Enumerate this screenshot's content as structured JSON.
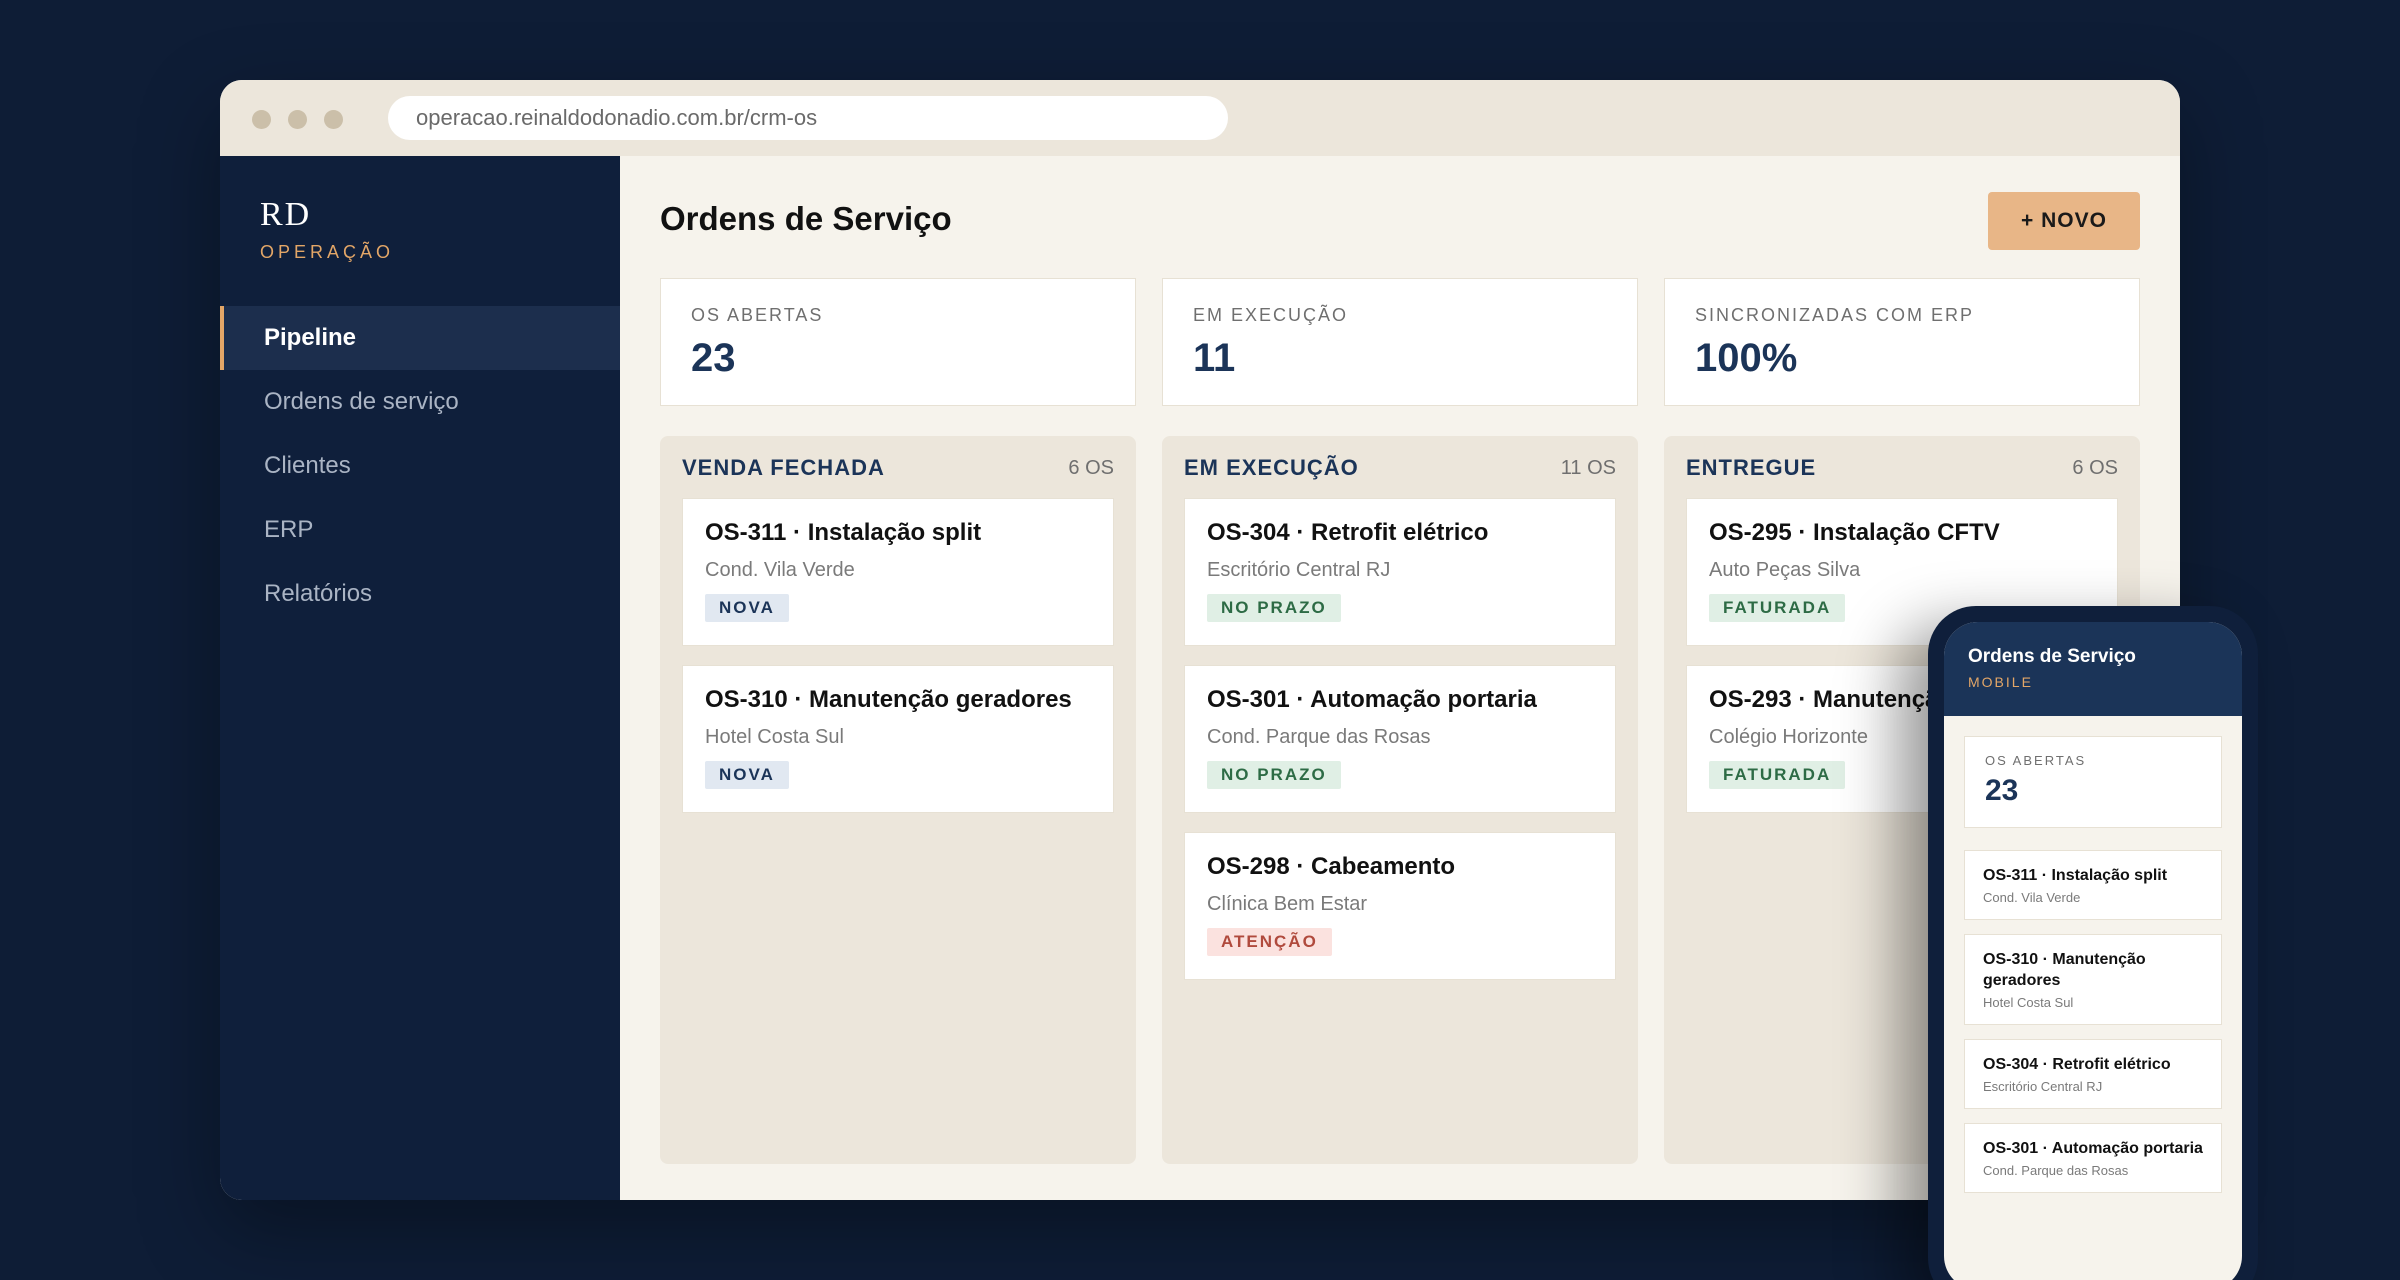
{
  "browser": {
    "url": "operacao.reinaldodonadio.com.br/crm-os"
  },
  "sidebar": {
    "brand": "RD",
    "brand_sub": "OPERAÇÃO",
    "items": [
      {
        "label": "Pipeline",
        "active": true
      },
      {
        "label": "Ordens de serviço",
        "active": false
      },
      {
        "label": "Clientes",
        "active": false
      },
      {
        "label": "ERP",
        "active": false
      },
      {
        "label": "Relatórios",
        "active": false
      }
    ]
  },
  "main": {
    "title": "Ordens de Serviço",
    "new_button": "+ NOVO",
    "kpis": [
      {
        "label": "OS ABERTAS",
        "value": "23"
      },
      {
        "label": "EM EXECUÇÃO",
        "value": "11"
      },
      {
        "label": "SINCRONIZADAS COM ERP",
        "value": "100%"
      }
    ],
    "columns": [
      {
        "title": "VENDA FECHADA",
        "count": "6 OS",
        "cards": [
          {
            "title": "OS-311 · Instalação split",
            "client": "Cond. Vila Verde",
            "tag": "NOVA"
          },
          {
            "title": "OS-310 · Manutenção geradores",
            "client": "Hotel Costa Sul",
            "tag": "NOVA"
          }
        ]
      },
      {
        "title": "EM EXECUÇÃO",
        "count": "11 OS",
        "cards": [
          {
            "title": "OS-304 · Retrofit elétrico",
            "client": "Escritório Central RJ",
            "tag": "NO PRAZO"
          },
          {
            "title": "OS-301 · Automação portaria",
            "client": "Cond. Parque das Rosas",
            "tag": "NO PRAZO"
          },
          {
            "title": "OS-298 · Cabeamento",
            "client": "Clínica Bem Estar",
            "tag": "ATENÇÃO"
          }
        ]
      },
      {
        "title": "ENTREGUE",
        "count": "6 OS",
        "cards": [
          {
            "title": "OS-295 · Instalação CFTV",
            "client": "Auto Peças Silva",
            "tag": "FATURADA"
          },
          {
            "title": "OS-293 · Manutenção",
            "client": "Colégio Horizonte",
            "tag": "FATURADA"
          }
        ]
      }
    ]
  },
  "mobile": {
    "title": "Ordens de Serviço",
    "sub": "MOBILE",
    "kpi_label": "OS ABERTAS",
    "kpi_value": "23",
    "cards": [
      {
        "title": "OS-311 · Instalação split",
        "client": "Cond. Vila Verde"
      },
      {
        "title": "OS-310 · Manutenção geradores",
        "client": "Hotel Costa Sul"
      },
      {
        "title": "OS-304 · Retrofit elétrico",
        "client": "Escritório Central RJ"
      },
      {
        "title": "OS-301 · Automação portaria",
        "client": "Cond. Parque das Rosas"
      }
    ]
  },
  "colors": {
    "background": "#0e1d36",
    "sidebar": "#0f1f3b",
    "accent": "#e3a667",
    "button": "#e8b687",
    "navy_text": "#1b3458"
  }
}
